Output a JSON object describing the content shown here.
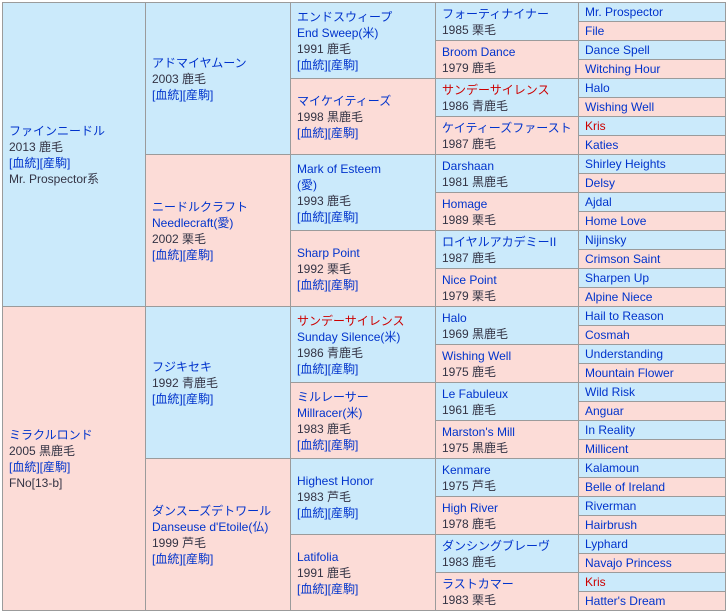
{
  "colors": {
    "male_bg": "#cbeafb",
    "female_bg": "#fcdcd7",
    "link": "#0033cc",
    "info": "#333344",
    "highlight": "#cc0000",
    "border_inner": "#9b9b9b",
    "border_outer": "#808080"
  },
  "labels": {
    "blood": "[血統]",
    "offspring": "[産駒]"
  },
  "pedigree": {
    "generations": [
      {
        "rowspan": 16,
        "cells": [
          {
            "sex": "m",
            "lines": [
              {
                "type": "name",
                "text": "ファインニードル"
              },
              {
                "type": "info",
                "text": "2013 鹿毛"
              },
              {
                "type": "links"
              },
              {
                "type": "extra",
                "text": "Mr. Prospector系"
              }
            ]
          },
          {
            "sex": "f",
            "lines": [
              {
                "type": "name",
                "text": "ミラクルロンド"
              },
              {
                "type": "info",
                "text": "2005 黒鹿毛"
              },
              {
                "type": "links"
              },
              {
                "type": "extra",
                "text": "FNo[13-b]"
              }
            ]
          }
        ]
      },
      {
        "rowspan": 8,
        "cells": [
          {
            "sex": "m",
            "lines": [
              {
                "type": "name",
                "text": "アドマイヤムーン"
              },
              {
                "type": "info",
                "text": "2003 鹿毛"
              },
              {
                "type": "links"
              }
            ]
          },
          {
            "sex": "f",
            "lines": [
              {
                "type": "name",
                "text": "ニードルクラフト"
              },
              {
                "type": "sub",
                "text": "Needlecraft(愛)"
              },
              {
                "type": "info",
                "text": "2002 栗毛"
              },
              {
                "type": "links"
              }
            ]
          },
          {
            "sex": "m",
            "lines": [
              {
                "type": "name",
                "text": "フジキセキ"
              },
              {
                "type": "info",
                "text": "1992 青鹿毛"
              },
              {
                "type": "links"
              }
            ]
          },
          {
            "sex": "f",
            "lines": [
              {
                "type": "name",
                "text": "ダンスーズデトワール"
              },
              {
                "type": "sub",
                "text": "Danseuse d'Etoile(仏)"
              },
              {
                "type": "info",
                "text": "1999 芦毛"
              },
              {
                "type": "links"
              }
            ]
          }
        ]
      },
      {
        "rowspan": 4,
        "cells": [
          {
            "sex": "m",
            "lines": [
              {
                "type": "name",
                "text": "エンドスウィープ"
              },
              {
                "type": "sub",
                "text": "End Sweep(米)"
              },
              {
                "type": "info",
                "text": "1991 鹿毛"
              },
              {
                "type": "links"
              }
            ]
          },
          {
            "sex": "f",
            "lines": [
              {
                "type": "name",
                "text": "マイケイティーズ"
              },
              {
                "type": "info",
                "text": "1998 黒鹿毛"
              },
              {
                "type": "links"
              }
            ]
          },
          {
            "sex": "m",
            "lines": [
              {
                "type": "name",
                "text": "Mark of Esteem"
              },
              {
                "type": "sub",
                "text": "(愛)"
              },
              {
                "type": "info",
                "text": "1993 鹿毛"
              },
              {
                "type": "links"
              }
            ]
          },
          {
            "sex": "f",
            "lines": [
              {
                "type": "name",
                "text": "Sharp Point"
              },
              {
                "type": "info",
                "text": "1992 栗毛"
              },
              {
                "type": "links"
              }
            ]
          },
          {
            "sex": "m",
            "lines": [
              {
                "type": "name-red",
                "text": "サンデーサイレンス"
              },
              {
                "type": "sub",
                "text": "Sunday Silence(米)"
              },
              {
                "type": "info",
                "text": "1986 青鹿毛"
              },
              {
                "type": "links"
              }
            ]
          },
          {
            "sex": "f",
            "lines": [
              {
                "type": "name",
                "text": "ミルレーサー"
              },
              {
                "type": "sub",
                "text": "Millracer(米)"
              },
              {
                "type": "info",
                "text": "1983 鹿毛"
              },
              {
                "type": "links"
              }
            ]
          },
          {
            "sex": "m",
            "lines": [
              {
                "type": "name",
                "text": "Highest Honor"
              },
              {
                "type": "info",
                "text": "1983 芦毛"
              },
              {
                "type": "links"
              }
            ]
          },
          {
            "sex": "f",
            "lines": [
              {
                "type": "name",
                "text": "Latifolia"
              },
              {
                "type": "info",
                "text": "1991 鹿毛"
              },
              {
                "type": "links"
              }
            ]
          }
        ]
      },
      {
        "rowspan": 2,
        "cells": [
          {
            "sex": "m",
            "lines": [
              {
                "type": "name",
                "text": "フォーティナイナー"
              },
              {
                "type": "info",
                "text": "1985 栗毛"
              }
            ]
          },
          {
            "sex": "f",
            "lines": [
              {
                "type": "name",
                "text": "Broom Dance"
              },
              {
                "type": "info",
                "text": "1979 鹿毛"
              }
            ]
          },
          {
            "sex": "m",
            "lines": [
              {
                "type": "name-red",
                "text": "サンデーサイレンス"
              },
              {
                "type": "info",
                "text": "1986 青鹿毛"
              }
            ]
          },
          {
            "sex": "f",
            "lines": [
              {
                "type": "name",
                "text": "ケイティーズファースト"
              },
              {
                "type": "info",
                "text": "1987 鹿毛"
              }
            ]
          },
          {
            "sex": "m",
            "lines": [
              {
                "type": "name",
                "text": "Darshaan"
              },
              {
                "type": "info",
                "text": "1981 黒鹿毛"
              }
            ]
          },
          {
            "sex": "f",
            "lines": [
              {
                "type": "name",
                "text": "Homage"
              },
              {
                "type": "info",
                "text": "1989 栗毛"
              }
            ]
          },
          {
            "sex": "m",
            "lines": [
              {
                "type": "name",
                "text": "ロイヤルアカデミーII"
              },
              {
                "type": "info",
                "text": "1987 鹿毛"
              }
            ]
          },
          {
            "sex": "f",
            "lines": [
              {
                "type": "name",
                "text": "Nice Point"
              },
              {
                "type": "info",
                "text": "1979 栗毛"
              }
            ]
          },
          {
            "sex": "m",
            "lines": [
              {
                "type": "name",
                "text": "Halo"
              },
              {
                "type": "info",
                "text": "1969 黒鹿毛"
              }
            ]
          },
          {
            "sex": "f",
            "lines": [
              {
                "type": "name",
                "text": "Wishing Well"
              },
              {
                "type": "info",
                "text": "1975 鹿毛"
              }
            ]
          },
          {
            "sex": "m",
            "lines": [
              {
                "type": "name",
                "text": "Le Fabuleux"
              },
              {
                "type": "info",
                "text": "1961 鹿毛"
              }
            ]
          },
          {
            "sex": "f",
            "lines": [
              {
                "type": "name",
                "text": "Marston's Mill"
              },
              {
                "type": "info",
                "text": "1975 黒鹿毛"
              }
            ]
          },
          {
            "sex": "m",
            "lines": [
              {
                "type": "name",
                "text": "Kenmare"
              },
              {
                "type": "info",
                "text": "1975 芦毛"
              }
            ]
          },
          {
            "sex": "f",
            "lines": [
              {
                "type": "name",
                "text": "High River"
              },
              {
                "type": "info",
                "text": "1978 鹿毛"
              }
            ]
          },
          {
            "sex": "m",
            "lines": [
              {
                "type": "name",
                "text": "ダンシングブレーヴ"
              },
              {
                "type": "info",
                "text": "1983 鹿毛"
              }
            ]
          },
          {
            "sex": "f",
            "lines": [
              {
                "type": "name",
                "text": "ラストカマー"
              },
              {
                "type": "info",
                "text": "1983 栗毛"
              }
            ]
          }
        ]
      },
      {
        "rowspan": 1,
        "cells": [
          {
            "sex": "m",
            "lines": [
              {
                "type": "name",
                "text": "Mr. Prospector"
              }
            ]
          },
          {
            "sex": "f",
            "lines": [
              {
                "type": "name",
                "text": "File"
              }
            ]
          },
          {
            "sex": "m",
            "lines": [
              {
                "type": "name",
                "text": "Dance Spell"
              }
            ]
          },
          {
            "sex": "f",
            "lines": [
              {
                "type": "name",
                "text": "Witching Hour"
              }
            ]
          },
          {
            "sex": "m",
            "lines": [
              {
                "type": "name",
                "text": "Halo"
              }
            ]
          },
          {
            "sex": "f",
            "lines": [
              {
                "type": "name",
                "text": "Wishing Well"
              }
            ]
          },
          {
            "sex": "m",
            "lines": [
              {
                "type": "name-red",
                "text": "Kris"
              }
            ]
          },
          {
            "sex": "f",
            "lines": [
              {
                "type": "name",
                "text": "Katies"
              }
            ]
          },
          {
            "sex": "m",
            "lines": [
              {
                "type": "name",
                "text": "Shirley Heights"
              }
            ]
          },
          {
            "sex": "f",
            "lines": [
              {
                "type": "name",
                "text": "Delsy"
              }
            ]
          },
          {
            "sex": "m",
            "lines": [
              {
                "type": "name",
                "text": "Ajdal"
              }
            ]
          },
          {
            "sex": "f",
            "lines": [
              {
                "type": "name",
                "text": "Home Love"
              }
            ]
          },
          {
            "sex": "m",
            "lines": [
              {
                "type": "name",
                "text": "Nijinsky"
              }
            ]
          },
          {
            "sex": "f",
            "lines": [
              {
                "type": "name",
                "text": "Crimson Saint"
              }
            ]
          },
          {
            "sex": "m",
            "lines": [
              {
                "type": "name",
                "text": "Sharpen Up"
              }
            ]
          },
          {
            "sex": "f",
            "lines": [
              {
                "type": "name",
                "text": "Alpine Niece"
              }
            ]
          },
          {
            "sex": "m",
            "lines": [
              {
                "type": "name",
                "text": "Hail to Reason"
              }
            ]
          },
          {
            "sex": "f",
            "lines": [
              {
                "type": "name",
                "text": "Cosmah"
              }
            ]
          },
          {
            "sex": "m",
            "lines": [
              {
                "type": "name",
                "text": "Understanding"
              }
            ]
          },
          {
            "sex": "f",
            "lines": [
              {
                "type": "name",
                "text": "Mountain Flower"
              }
            ]
          },
          {
            "sex": "m",
            "lines": [
              {
                "type": "name",
                "text": "Wild Risk"
              }
            ]
          },
          {
            "sex": "f",
            "lines": [
              {
                "type": "name",
                "text": "Anguar"
              }
            ]
          },
          {
            "sex": "m",
            "lines": [
              {
                "type": "name",
                "text": "In Reality"
              }
            ]
          },
          {
            "sex": "f",
            "lines": [
              {
                "type": "name",
                "text": "Millicent"
              }
            ]
          },
          {
            "sex": "m",
            "lines": [
              {
                "type": "name",
                "text": "Kalamoun"
              }
            ]
          },
          {
            "sex": "f",
            "lines": [
              {
                "type": "name",
                "text": "Belle of Ireland"
              }
            ]
          },
          {
            "sex": "m",
            "lines": [
              {
                "type": "name",
                "text": "Riverman"
              }
            ]
          },
          {
            "sex": "f",
            "lines": [
              {
                "type": "name",
                "text": "Hairbrush"
              }
            ]
          },
          {
            "sex": "m",
            "lines": [
              {
                "type": "name",
                "text": "Lyphard"
              }
            ]
          },
          {
            "sex": "f",
            "lines": [
              {
                "type": "name",
                "text": "Navajo Princess"
              }
            ]
          },
          {
            "sex": "m",
            "lines": [
              {
                "type": "name-red",
                "text": "Kris"
              }
            ]
          },
          {
            "sex": "f",
            "lines": [
              {
                "type": "name",
                "text": "Hatter's Dream"
              }
            ]
          }
        ]
      }
    ]
  }
}
